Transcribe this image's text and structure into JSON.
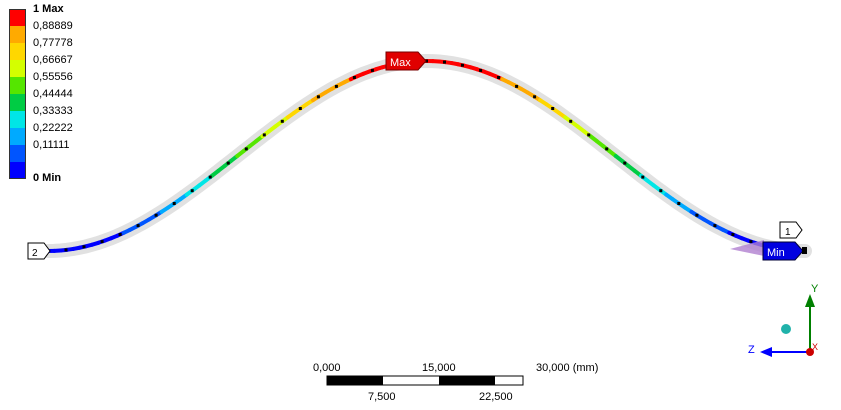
{
  "legend": {
    "labels": [
      "1 Max",
      "0,88889",
      "0,77778",
      "0,66667",
      "0,55556",
      "0,44444",
      "0,33333",
      "0,22222",
      "0,11111",
      "0 Min"
    ],
    "colors": [
      "#ff0000",
      "#ffaa00",
      "#ffd700",
      "#d4ff00",
      "#55e600",
      "#00cc44",
      "#00e6e6",
      "#00aaff",
      "#0055ff",
      "#0000ff"
    ]
  },
  "probes": {
    "max": "Max",
    "min": "Min",
    "node_1": "1",
    "node_2": "2"
  },
  "scale_bar": {
    "top_labels": [
      "0,000",
      "15,000",
      "30,000 (mm)"
    ],
    "bottom_labels": [
      "7,500",
      "22,500"
    ]
  },
  "triad": {
    "y_label": "Y",
    "z_label": "Z",
    "x_label": "X",
    "colors": {
      "y": "#008000",
      "z": "#0000ff",
      "x": "#cc0000"
    }
  }
}
